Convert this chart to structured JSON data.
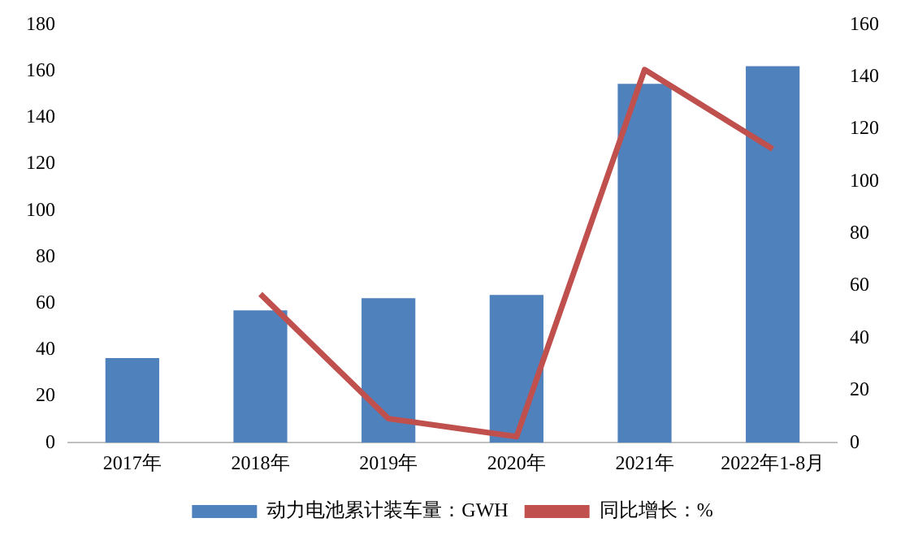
{
  "chart_data": {
    "type": "bar",
    "categories": [
      "2017年",
      "2018年",
      "2019年",
      "2020年",
      "2021年",
      "2022年1-8月"
    ],
    "series": [
      {
        "name": "动力电池累计装车量：GWH",
        "color": "#4f81bd",
        "values": [
          36.4,
          57,
          62.2,
          63.6,
          154.5,
          162.1
        ]
      },
      {
        "name": "同比增长：%",
        "type": "line",
        "axis": "y2",
        "color": "#c0504d",
        "values": [
          null,
          56.9,
          9.2,
          2.3,
          142.8,
          112.4
        ]
      }
    ],
    "ylim": [
      0,
      180
    ],
    "yticks": [
      0,
      20,
      40,
      60,
      80,
      100,
      120,
      140,
      160,
      180
    ],
    "y2lim": [
      0,
      160
    ],
    "y2ticks": [
      0,
      20,
      40,
      60,
      80,
      100,
      120,
      140,
      160
    ],
    "grid": false,
    "legend": "bottom",
    "marker": "none"
  }
}
